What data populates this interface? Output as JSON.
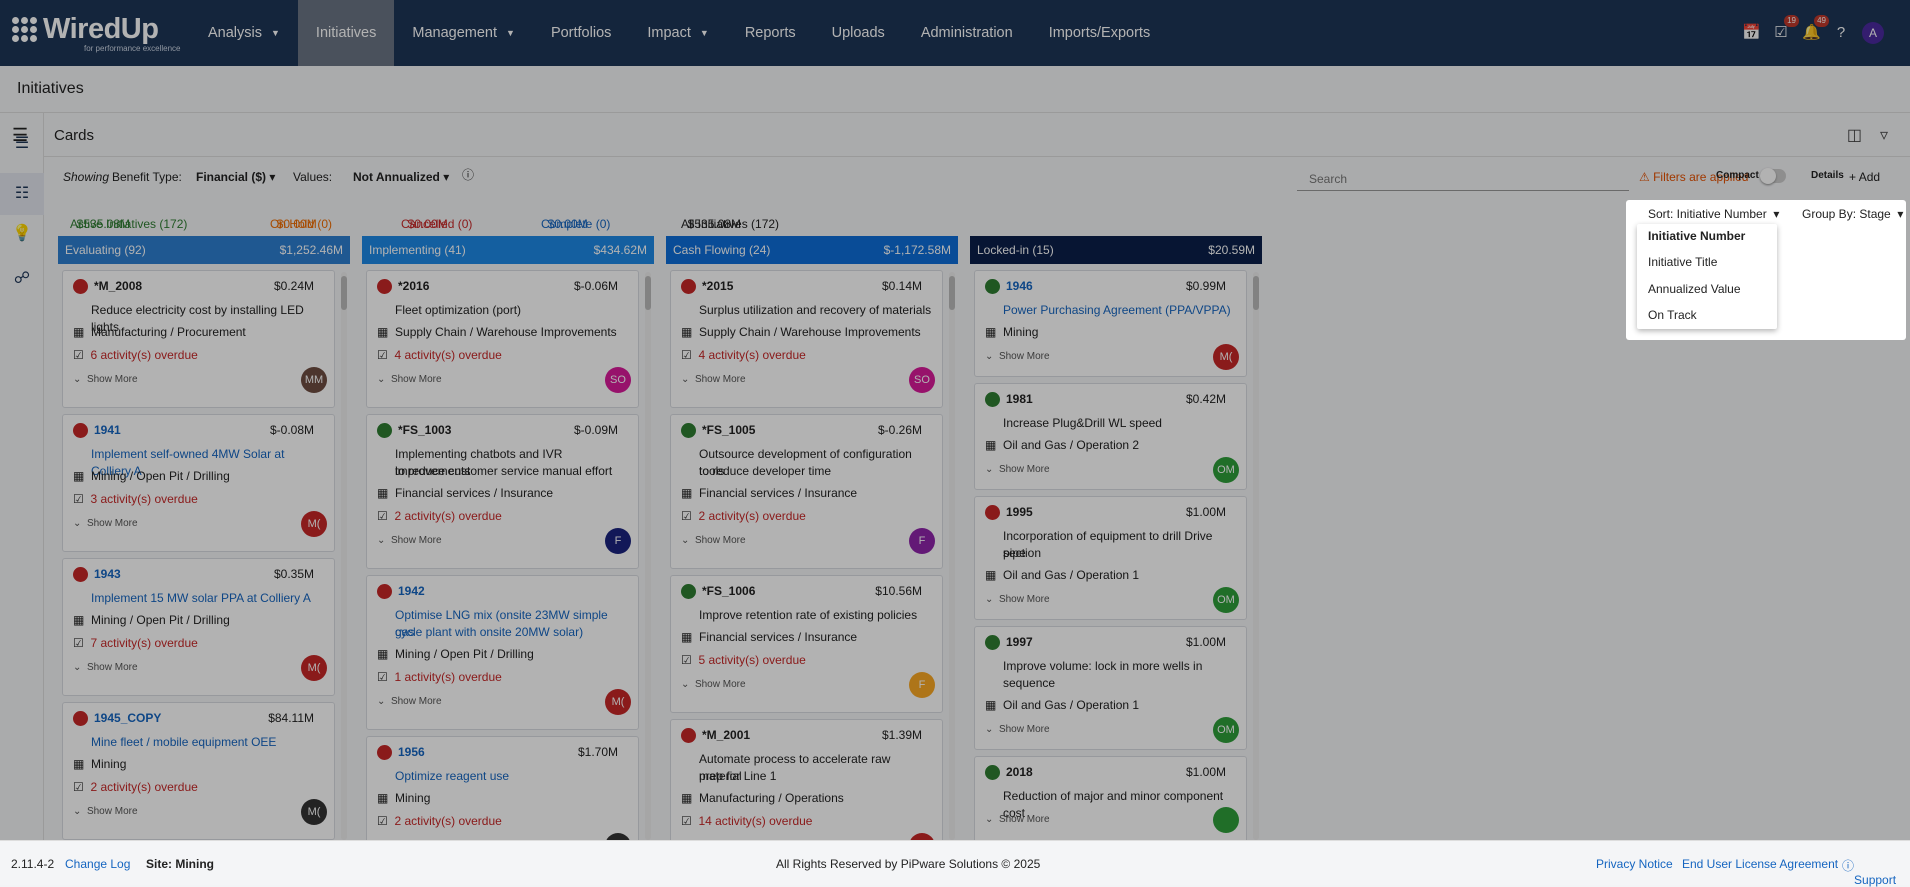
{
  "nav": {
    "logo_text": "WiredUp",
    "logo_sub": "for performance excellence",
    "items": [
      {
        "label": "Analysis",
        "caret": true
      },
      {
        "label": "Initiatives",
        "caret": false,
        "active": true
      },
      {
        "label": "Management",
        "caret": true
      },
      {
        "label": "Portfolios",
        "caret": false
      },
      {
        "label": "Impact",
        "caret": true
      },
      {
        "label": "Reports",
        "caret": false
      },
      {
        "label": "Uploads",
        "caret": false
      },
      {
        "label": "Administration",
        "caret": false
      },
      {
        "label": "Imports/Exports",
        "caret": false
      }
    ],
    "tasks_badge": "19",
    "notifications_badge": "49",
    "avatar": "A"
  },
  "page": {
    "title": "Initiatives",
    "view": "Cards"
  },
  "filters": {
    "showing": "Showing",
    "benefit_type_label": "Benefit Type:",
    "benefit_type_value": "Financial ($)",
    "values_label": "Values:",
    "values_value": "Not Annualized",
    "search_placeholder": "Search",
    "filters_applied": "Filters are applied",
    "compact": "Compact",
    "details": "Details",
    "add": "Add"
  },
  "summary": {
    "active": "Active Initiatives (172)",
    "active_amt": "$535.08M",
    "onhold": "On Hold (0)",
    "onhold_amt": "$0.00M",
    "cancelled": "Cancelled (0)",
    "cancelled_amt": "$0.00M",
    "complete": "Complete (0)",
    "complete_amt": "$0.00M",
    "all": "All Initiatives (172)",
    "all_amt": "$535.08M"
  },
  "sort": {
    "label": "Sort: Initiative Number",
    "group": "Group By: Stage",
    "options": [
      "Initiative Number",
      "Initiative Title",
      "Annualized Value",
      "On Track"
    ]
  },
  "columns": [
    {
      "name": "Evaluating (92)",
      "total": "$1,252.46M",
      "color": "#2d7fd0",
      "cards": [
        {
          "num": "*M_2008",
          "link": false,
          "amt": "$0.24M",
          "status": "red",
          "title": [
            "Reduce electricity cost by installing LED lights"
          ],
          "area": "Manufacturing / Procurement",
          "overdue": "6 activity(s) overdue",
          "avatar": "MM",
          "avcolor": "#6d4c41"
        },
        {
          "num": "1941",
          "link": true,
          "amt": "$-0.08M",
          "status": "red",
          "title": [
            "Implement self-owned 4MW Solar at Colliery A"
          ],
          "area": "Mining / Open Pit / Drilling",
          "overdue": "3 activity(s) overdue",
          "avatar": "M(",
          "avcolor": "#c62828"
        },
        {
          "num": "1943",
          "link": true,
          "amt": "$0.35M",
          "status": "red",
          "title": [
            "Implement 15 MW solar PPA at Colliery A"
          ],
          "area": "Mining / Open Pit / Drilling",
          "overdue": "7 activity(s) overdue",
          "avatar": "M(",
          "avcolor": "#c62828"
        },
        {
          "num": "1945_COPY",
          "link": true,
          "amt": "$84.11M",
          "status": "red",
          "title": [
            "Mine fleet / mobile equipment OEE"
          ],
          "area": "Mining",
          "overdue": "2 activity(s) overdue",
          "avatar": "M(",
          "avcolor": "#333333"
        }
      ]
    },
    {
      "name": "Implementing (41)",
      "total": "$434.62M",
      "color": "#1e88e5",
      "cards": [
        {
          "num": "*2016",
          "link": false,
          "amt": "$-0.06M",
          "status": "red",
          "title": [
            "Fleet optimization (port)"
          ],
          "area": "Supply Chain / Warehouse Improvements",
          "overdue": "4 activity(s) overdue",
          "avatar": "SO",
          "avcolor": "#d81b9a"
        },
        {
          "num": "*FS_1003",
          "link": false,
          "amt": "$-0.09M",
          "status": "green",
          "title": [
            "Implementing chatbots and IVR improvements",
            "to reduce customer service manual effort"
          ],
          "area": "Financial services / Insurance",
          "overdue": "2 activity(s) overdue",
          "avatar": "F",
          "avcolor": "#1a237e"
        },
        {
          "num": "1942",
          "link": true,
          "amt": "",
          "status": "red",
          "title": [
            "Optimise LNG mix (onsite 23MW simple gas",
            "cycle plant with onsite 20MW solar)"
          ],
          "area": "Mining / Open Pit / Drilling",
          "overdue": "1 activity(s) overdue",
          "avatar": "M(",
          "avcolor": "#c62828"
        },
        {
          "num": "1956",
          "link": true,
          "amt": "$1.70M",
          "status": "red",
          "title": [
            "Optimize reagent use"
          ],
          "area": "Mining",
          "overdue": "2 activity(s) overdue",
          "avatar": "",
          "avcolor": "#333333"
        }
      ]
    },
    {
      "name": "Cash Flowing (24)",
      "total": "$-1,172.58M",
      "color": "#0d6ed8",
      "cards": [
        {
          "num": "*2015",
          "link": false,
          "amt": "$0.14M",
          "status": "red",
          "title": [
            "Surplus utilization and recovery of materials"
          ],
          "area": "Supply Chain / Warehouse Improvements",
          "overdue": "4 activity(s) overdue",
          "avatar": "SO",
          "avcolor": "#d81b9a"
        },
        {
          "num": "*FS_1005",
          "link": false,
          "amt": "$-0.26M",
          "status": "green",
          "title": [
            "Outsource development of configuration tools",
            "to reduce developer time"
          ],
          "area": "Financial services / Insurance",
          "overdue": "2 activity(s) overdue",
          "avatar": "F",
          "avcolor": "#8e24aa"
        },
        {
          "num": "*FS_1006",
          "link": false,
          "amt": "$10.56M",
          "status": "green",
          "title": [
            "Improve retention rate of existing policies"
          ],
          "area": "Financial services / Insurance",
          "overdue": "5 activity(s) overdue",
          "avatar": "F",
          "avcolor": "#f9a825"
        },
        {
          "num": "*M_2001",
          "link": false,
          "amt": "$1.39M",
          "status": "red",
          "title": [
            "Automate process to accelerate raw material",
            "prep for Line 1"
          ],
          "area": "Manufacturing / Operations",
          "overdue": "14 activity(s) overdue",
          "avatar": "",
          "avcolor": "#c62828"
        }
      ]
    },
    {
      "name": "Locked-in (15)",
      "total": "$20.59M",
      "color": "#0b1f4a",
      "cards": [
        {
          "num": "1946",
          "link": true,
          "amt": "$0.99M",
          "status": "green",
          "title": [
            "Power Purchasing Agreement (PPA/VPPA)"
          ],
          "area": "Mining",
          "overdue": "",
          "avatar": "M(",
          "avcolor": "#c62828"
        },
        {
          "num": "1981",
          "link": false,
          "amt": "$0.42M",
          "status": "green",
          "title": [
            "Increase Plug&Drill WL speed"
          ],
          "area": "Oil and Gas / Operation 2",
          "overdue": "",
          "avatar": "OM",
          "avcolor": "#2e9e3a"
        },
        {
          "num": "1995",
          "link": false,
          "amt": "$1.00M",
          "status": "red",
          "title": [
            "Incorporation of equipment to drill Drive pipe",
            "section"
          ],
          "area": "Oil and Gas / Operation 1",
          "overdue": "",
          "avatar": "OM",
          "avcolor": "#2e9e3a"
        },
        {
          "num": "1997",
          "link": false,
          "amt": "$1.00M",
          "status": "green",
          "title": [
            "Improve volume: lock in more wells in",
            "sequence"
          ],
          "area": "Oil and Gas / Operation 1",
          "overdue": "",
          "avatar": "OM",
          "avcolor": "#2e9e3a"
        },
        {
          "num": "2018",
          "link": false,
          "amt": "$1.00M",
          "status": "green",
          "title": [
            "Reduction of major and minor component cost"
          ],
          "area": "",
          "overdue": "",
          "avatar": "",
          "avcolor": "#2e9e3a"
        }
      ]
    }
  ],
  "show_more": "Show More",
  "footer": {
    "version": "2.11.4-2",
    "changelog": "Change Log",
    "site": "Site: Mining",
    "copyright": "All Rights Reserved by PiPware Solutions © 2025",
    "privacy": "Privacy Notice",
    "eula": "End User License Agreement",
    "support": "Support"
  }
}
